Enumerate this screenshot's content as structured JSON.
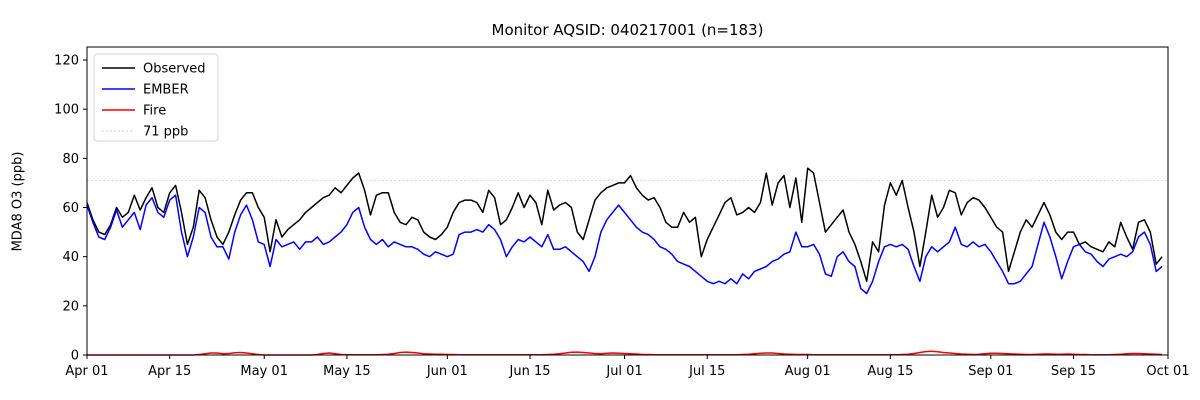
{
  "header": {
    "window_title": "Monitor AQSID: 040217001 (n=183)"
  },
  "colors": {
    "observed": "#000000",
    "ember": "#0000ff",
    "fire": "#ff0000",
    "threshold": "#d3d3d3",
    "axis": "#000000",
    "legend_border": "#d5d5d5",
    "background": "#ffffff"
  },
  "chart_data": {
    "type": "line",
    "title": "Monitor AQSID: 040217001 (n=183)",
    "xlabel": "",
    "ylabel": "MDA8 O3 (ppb)",
    "ylim": [
      0,
      125.3
    ],
    "xlim_days": [
      0,
      183
    ],
    "grid": false,
    "legend_position": "upper left",
    "y_ticks": [
      0,
      20,
      40,
      60,
      80,
      100,
      120
    ],
    "x_ticks": [
      {
        "label": "Apr 01",
        "day": 0
      },
      {
        "label": "Apr 15",
        "day": 14
      },
      {
        "label": "May 01",
        "day": 30
      },
      {
        "label": "May 15",
        "day": 44
      },
      {
        "label": "Jun 01",
        "day": 61
      },
      {
        "label": "Jun 15",
        "day": 75
      },
      {
        "label": "Jul 01",
        "day": 91
      },
      {
        "label": "Jul 15",
        "day": 105
      },
      {
        "label": "Aug 01",
        "day": 122
      },
      {
        "label": "Aug 15",
        "day": 136
      },
      {
        "label": "Sep 01",
        "day": 153
      },
      {
        "label": "Sep 15",
        "day": 167
      },
      {
        "label": "Oct 01",
        "day": 183
      }
    ],
    "threshold": {
      "value": 71,
      "label": "71 ppb",
      "style": "dotted"
    },
    "x_unit": "days since Apr 01 (daily values, n=183)",
    "series": [
      {
        "name": "Observed",
        "color_key": "observed",
        "values": [
          62,
          55,
          50,
          49,
          53,
          60,
          56,
          58,
          65,
          59,
          64,
          68,
          60,
          58,
          66,
          69,
          58,
          45,
          52,
          67,
          64,
          55,
          48,
          45,
          50,
          57,
          63,
          66,
          66,
          60,
          56,
          42,
          55,
          48,
          51,
          53,
          55,
          58,
          60,
          62,
          64,
          65,
          68,
          66,
          69,
          72,
          74,
          67,
          57,
          65,
          66,
          66,
          58,
          54,
          53,
          56,
          55,
          50,
          48,
          47,
          49,
          52,
          58,
          62,
          63,
          63,
          62,
          58,
          67,
          64,
          53,
          55,
          60,
          66,
          60,
          65,
          62,
          53,
          67,
          59,
          61,
          62,
          60,
          50,
          47,
          55,
          63,
          66,
          68,
          69,
          70,
          70,
          73,
          68,
          65,
          63,
          64,
          60,
          54,
          52,
          52,
          58,
          54,
          56,
          40,
          47,
          52,
          57,
          62,
          64,
          57,
          58,
          60,
          58,
          62,
          74,
          61,
          70,
          73,
          60,
          72,
          54,
          76,
          74,
          62,
          50,
          53,
          56,
          59,
          50,
          45,
          38,
          30,
          46,
          42,
          61,
          70,
          65,
          71,
          60,
          50,
          36,
          50,
          65,
          56,
          60,
          67,
          66,
          57,
          62,
          64,
          63,
          60,
          56,
          52,
          50,
          34,
          42,
          50,
          55,
          52,
          57,
          62,
          57,
          50,
          47,
          50,
          50,
          45,
          46,
          44,
          43,
          42,
          46,
          44,
          54,
          48,
          43,
          54,
          55,
          50,
          37,
          40
        ]
      },
      {
        "name": "EMBER",
        "color_key": "ember",
        "values": [
          61,
          54,
          48,
          47,
          52,
          59,
          52,
          55,
          58,
          51,
          61,
          64,
          58,
          56,
          63,
          65,
          50,
          40,
          48,
          60,
          58,
          48,
          44,
          44,
          39,
          50,
          57,
          61,
          55,
          46,
          45,
          36,
          47,
          44,
          45,
          46,
          43,
          46,
          46,
          48,
          45,
          46,
          48,
          50,
          53,
          58,
          60,
          52,
          47,
          45,
          47,
          44,
          46,
          45,
          44,
          44,
          43,
          41,
          40,
          42,
          41,
          40,
          41,
          49,
          50,
          50,
          51,
          50,
          53,
          51,
          47,
          40,
          44,
          47,
          46,
          48,
          46,
          44,
          49,
          43,
          43,
          44,
          42,
          40,
          38,
          34,
          40,
          50,
          55,
          58,
          61,
          58,
          55,
          52,
          50,
          49,
          47,
          44,
          43,
          41,
          38,
          37,
          36,
          34,
          32,
          30,
          29,
          30,
          29,
          31,
          29,
          33,
          31,
          34,
          35,
          36,
          38,
          39,
          41,
          42,
          50,
          44,
          44,
          45,
          41,
          33,
          32,
          40,
          42,
          38,
          36,
          27,
          25,
          30,
          38,
          44,
          45,
          44,
          45,
          43,
          36,
          30,
          40,
          44,
          42,
          44,
          46,
          52,
          45,
          44,
          46,
          44,
          45,
          42,
          38,
          34,
          29,
          29,
          30,
          33,
          36,
          45,
          54,
          48,
          40,
          31,
          38,
          44,
          45,
          42,
          41,
          38,
          36,
          39,
          40,
          41,
          40,
          42,
          48,
          50,
          45,
          34,
          36
        ]
      },
      {
        "name": "Fire",
        "color_key": "fire",
        "values": [
          0,
          0,
          0,
          0,
          0,
          0,
          0,
          0,
          0,
          0,
          0,
          0,
          0,
          0,
          0,
          0,
          0,
          0,
          0,
          0.2,
          0.5,
          0.8,
          0.8,
          0.5,
          0.6,
          0.9,
          1.0,
          0.8,
          0.5,
          0.2,
          0,
          0,
          0,
          0,
          0,
          0,
          0,
          0,
          0,
          0.2,
          0.6,
          0.8,
          0.5,
          0.2,
          0.1,
          0.1,
          0.1,
          0.1,
          0.1,
          0.1,
          0.2,
          0.3,
          0.6,
          1.0,
          1.2,
          1.0,
          0.8,
          0.5,
          0.4,
          0.3,
          0.3,
          0.2,
          0.2,
          0.1,
          0.1,
          0.1,
          0.1,
          0.1,
          0.1,
          0.1,
          0.1,
          0.1,
          0.1,
          0.1,
          0.1,
          0.1,
          0.1,
          0.1,
          0.2,
          0.3,
          0.5,
          0.8,
          1.1,
          1.2,
          1.0,
          0.8,
          0.6,
          0.5,
          0.7,
          0.8,
          0.7,
          0.6,
          0.5,
          0.4,
          0.2,
          0.2,
          0.1,
          0.1,
          0.1,
          0.1,
          0.1,
          0.1,
          0.1,
          0.1,
          0.1,
          0.1,
          0.1,
          0.1,
          0.1,
          0.1,
          0.1,
          0.2,
          0.3,
          0.5,
          0.7,
          0.8,
          0.8,
          0.6,
          0.4,
          0.3,
          0.2,
          0.2,
          0.2,
          0.1,
          0.1,
          0.1,
          0.1,
          0.1,
          0.1,
          0.1,
          0.1,
          0.1,
          0.1,
          0.1,
          0.1,
          0.1,
          0.1,
          0.1,
          0.2,
          0.3,
          0.6,
          1.0,
          1.4,
          1.5,
          1.3,
          1.0,
          0.8,
          0.6,
          0.4,
          0.3,
          0.2,
          0.3,
          0.5,
          0.7,
          0.7,
          0.6,
          0.5,
          0.4,
          0.3,
          0.2,
          0.2,
          0.3,
          0.4,
          0.4,
          0.3,
          0.3,
          0.4,
          0.3,
          0.2,
          0.2,
          0.1,
          0.1,
          0.1,
          0.1,
          0.2,
          0.3,
          0.5,
          0.6,
          0.6,
          0.5,
          0.4,
          0.3,
          0.2
        ]
      }
    ],
    "legend_entries": [
      "Observed",
      "EMBER",
      "Fire",
      "71 ppb"
    ]
  }
}
